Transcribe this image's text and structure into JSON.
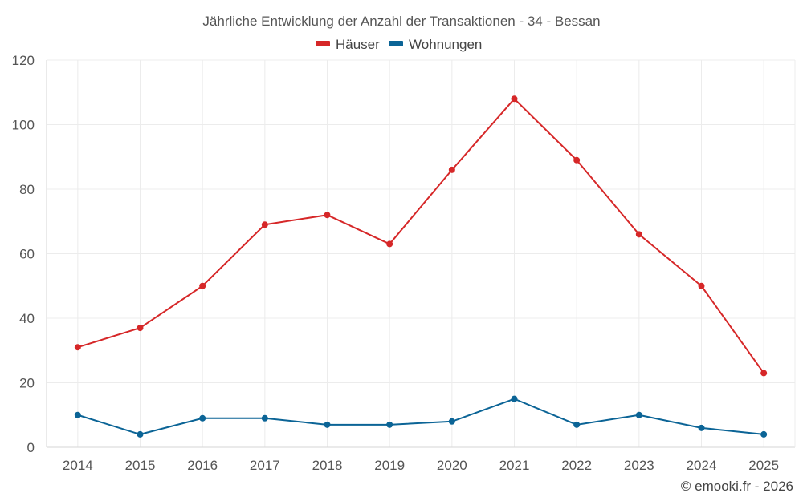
{
  "chart_data": {
    "type": "line",
    "title": "Jährliche Entwicklung der Anzahl der Transaktionen - 34 - Bessan",
    "categories": [
      "2014",
      "2015",
      "2016",
      "2017",
      "2018",
      "2019",
      "2020",
      "2021",
      "2022",
      "2023",
      "2024",
      "2025"
    ],
    "series": [
      {
        "name": "Häuser",
        "color": "#d62728",
        "values": [
          31,
          37,
          50,
          69,
          72,
          63,
          86,
          108,
          89,
          66,
          50,
          23
        ]
      },
      {
        "name": "Wohnungen",
        "color": "#0b6496",
        "values": [
          10,
          4,
          9,
          9,
          7,
          7,
          8,
          15,
          7,
          10,
          6,
          4
        ]
      }
    ],
    "ylim": [
      0,
      120
    ],
    "yticks": [
      0,
      20,
      40,
      60,
      80,
      100,
      120
    ],
    "grid": true,
    "legend": "top-center"
  },
  "copyright": "© emooki.fr - 2026"
}
